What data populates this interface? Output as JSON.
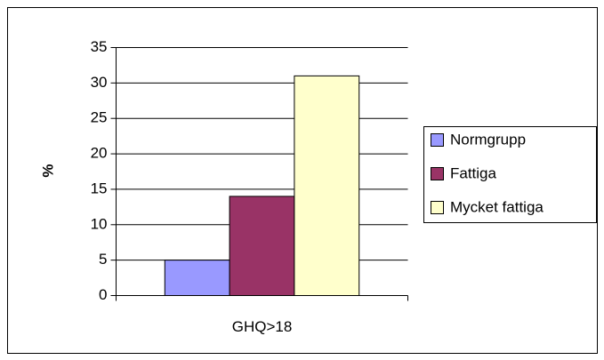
{
  "chart_data": {
    "type": "bar",
    "y_label": "%",
    "categories": [
      "GHQ>18"
    ],
    "series": [
      {
        "name": "Normgrupp",
        "color": "#9999ff",
        "values": [
          5
        ]
      },
      {
        "name": "Fattiga",
        "color": "#993366",
        "values": [
          14
        ]
      },
      {
        "name": "Mycket fattiga",
        "color": "#ffffcc",
        "values": [
          31
        ]
      }
    ],
    "ylim": [
      0,
      35
    ],
    "yticks": [
      0,
      5,
      10,
      15,
      20,
      25,
      30,
      35
    ],
    "grid": true,
    "legend": "right"
  }
}
